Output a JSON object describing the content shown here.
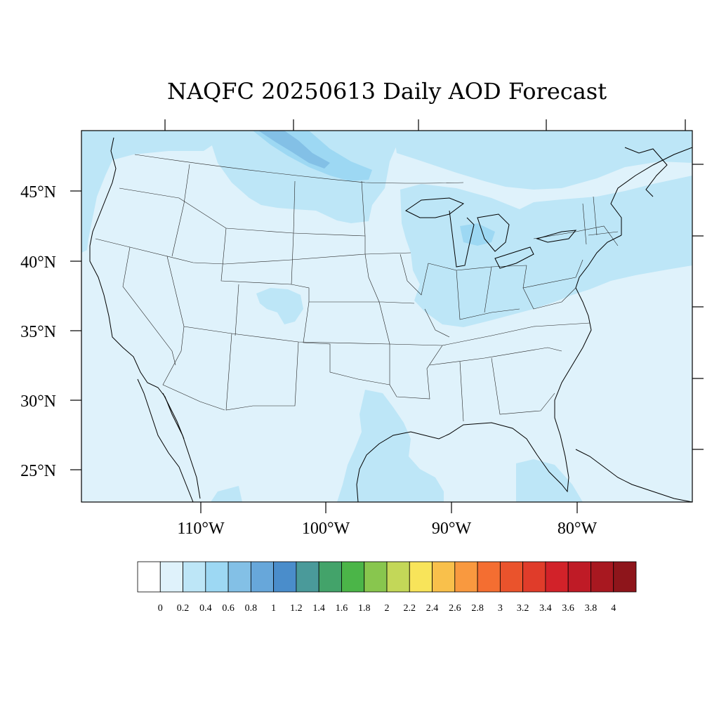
{
  "title": "NAQFC 20250613 Daily AOD Forecast",
  "lat_labels": [
    "45°N",
    "40°N",
    "35°N",
    "30°N",
    "25°N"
  ],
  "lon_labels": [
    "110°W",
    "100°W",
    "90°W",
    "80°W"
  ],
  "colorbar": {
    "labels": [
      "0",
      "0.2",
      "0.4",
      "0.6",
      "0.8",
      "1",
      "1.2",
      "1.4",
      "1.6",
      "1.8",
      "2",
      "2.2",
      "2.4",
      "2.6",
      "2.8",
      "3",
      "3.2",
      "3.4",
      "3.6",
      "3.8",
      "4"
    ],
    "colors": [
      "#ffffff",
      "#dff2fb",
      "#bde6f7",
      "#9dd8f3",
      "#83c0e6",
      "#67a7da",
      "#4a8dcb",
      "#4a9a9a",
      "#43a36a",
      "#4bb548",
      "#88c64e",
      "#c3d758",
      "#f8e45a",
      "#f9c04b",
      "#f9993f",
      "#f46e31",
      "#ea532c",
      "#e03c2a",
      "#d22229",
      "#bf1b26",
      "#a81820",
      "#8e151b"
    ]
  },
  "map_colors": {
    "background": "#dff2fb",
    "level_0_4": "#bde6f7",
    "level_0_6": "#9dd8f3",
    "level_0_8": "#83c0e6"
  }
}
